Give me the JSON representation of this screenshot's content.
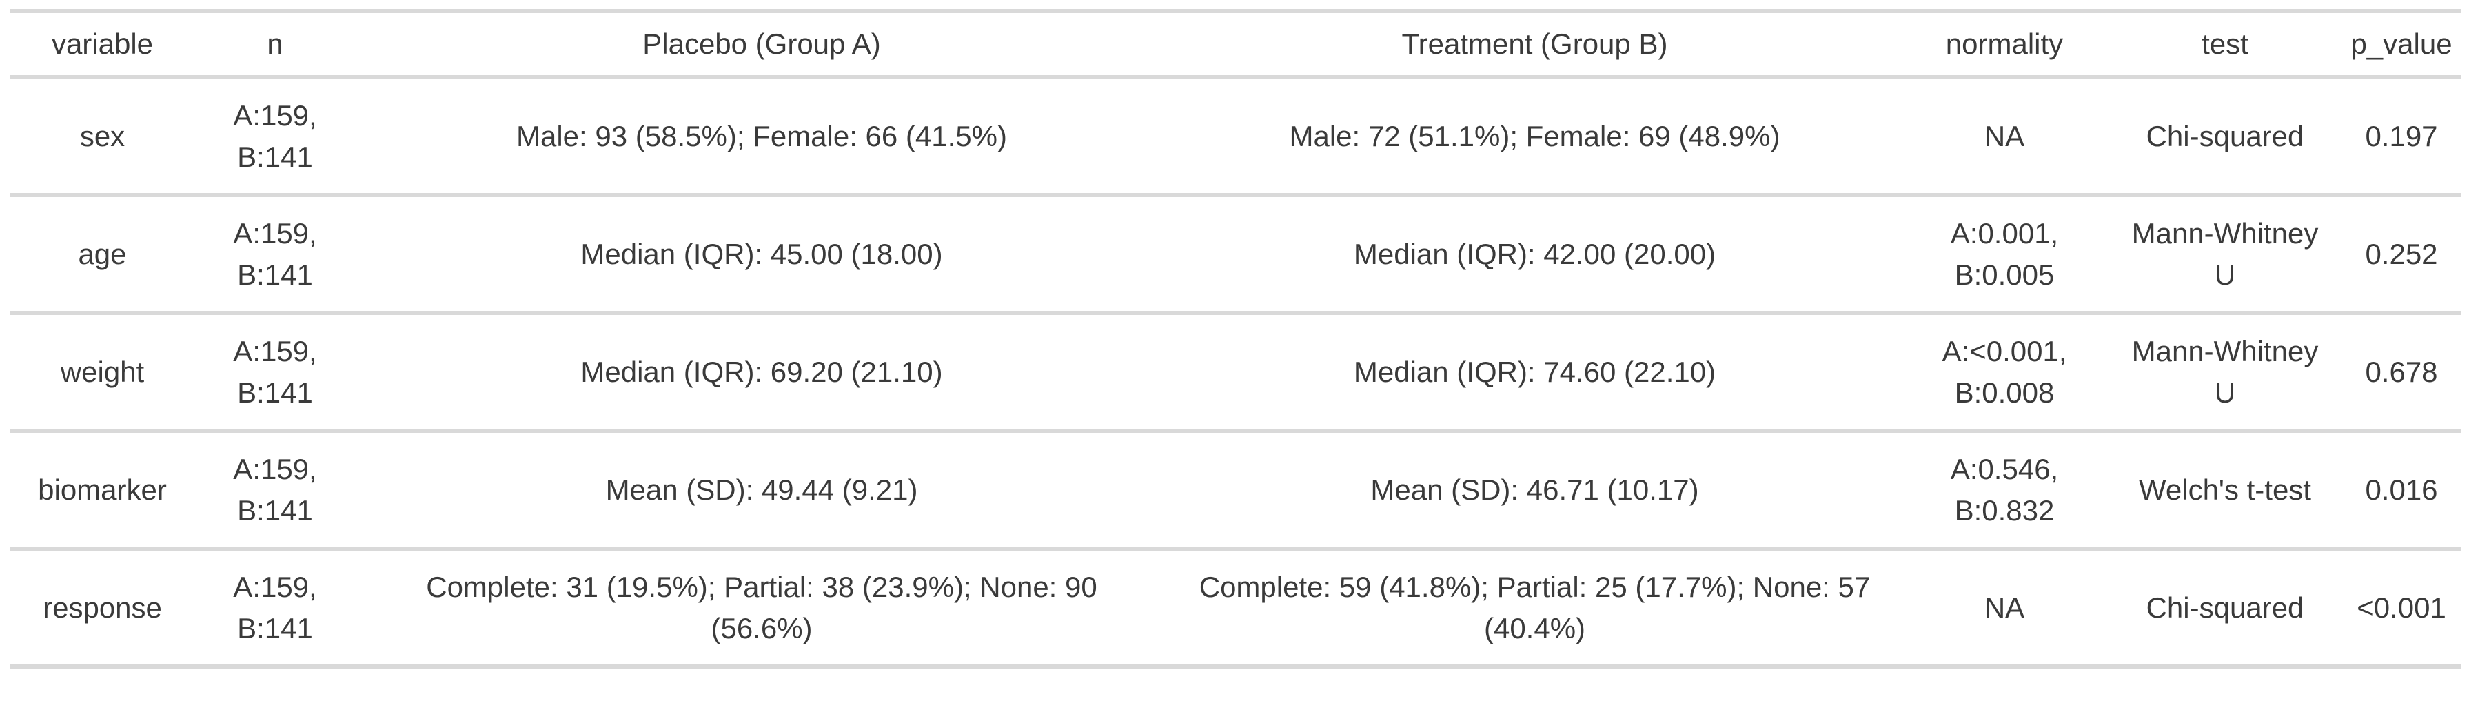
{
  "colors": {
    "background": "#ffffff",
    "text": "#3a3a3a",
    "divider_line": "#d9d9d9"
  },
  "chart_data": {
    "type": "table",
    "title": "",
    "layout": {
      "gridlines": "horizontal-only",
      "alignment": "center",
      "header_position": "top"
    },
    "columns": [
      "variable",
      "n",
      "Placebo (Group A)",
      "Treatment (Group B)",
      "normality",
      "test",
      "p_value"
    ],
    "rows": [
      [
        "sex",
        "A:159,\nB:141",
        "Male: 93 (58.5%); Female: 66 (41.5%)",
        "Male: 72 (51.1%); Female: 69 (48.9%)",
        "NA",
        "Chi-squared",
        "0.197"
      ],
      [
        "age",
        "A:159,\nB:141",
        "Median (IQR): 45.00 (18.00)",
        "Median (IQR): 42.00 (20.00)",
        "A:0.001,\nB:0.005",
        "Mann-Whitney\nU",
        "0.252"
      ],
      [
        "weight",
        "A:159,\nB:141",
        "Median (IQR): 69.20 (21.10)",
        "Median (IQR): 74.60 (22.10)",
        "A:<0.001,\nB:0.008",
        "Mann-Whitney\nU",
        "0.678"
      ],
      [
        "biomarker",
        "A:159,\nB:141",
        "Mean (SD): 49.44 (9.21)",
        "Mean (SD): 46.71 (10.17)",
        "A:0.546,\nB:0.832",
        "Welch's t-test",
        "0.016"
      ],
      [
        "response",
        "A:159,\nB:141",
        "Complete: 31 (19.5%); Partial: 38 (23.9%); None: 90\n(56.6%)",
        "Complete: 59 (41.8%); Partial: 25 (17.7%); None: 57\n(40.4%)",
        "NA",
        "Chi-squared",
        "<0.001"
      ]
    ]
  }
}
